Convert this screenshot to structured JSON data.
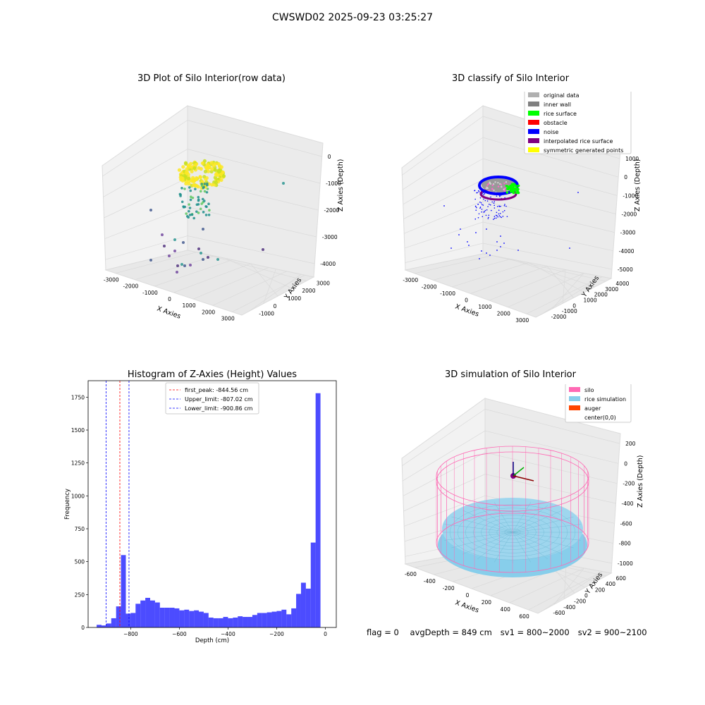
{
  "figure": {
    "suptitle": "CWSWD02 2025-09-23 03:25:27",
    "footer": {
      "flag": "flag = 0",
      "avg_depth": "avgDepth = 849 cm",
      "sv1": "sv1 = 800~2000",
      "sv2": "sv2 = 900~2100"
    }
  },
  "chart_data": [
    {
      "type": "scatter",
      "title": "3D Plot of Silo Interior(row data)",
      "xlabel": "X Axies",
      "ylabel": "Y Axies",
      "zlabel": "Z Axies (Depth)",
      "x_ticks": [
        "-3000",
        "-2000",
        "-1000",
        "0",
        "1000",
        "2000",
        "3000"
      ],
      "y_ticks": [
        "-1000",
        "0",
        "1000",
        "2000",
        "3000"
      ],
      "z_ticks": [
        "0",
        "-1000",
        "-2000",
        "-3000",
        "-4000"
      ],
      "colormap": [
        "#440154",
        "#21918c",
        "#fde725"
      ]
    },
    {
      "type": "scatter",
      "title": "3D classify of Silo Interior",
      "xlabel": "X Axies",
      "ylabel": "Y Axies",
      "zlabel": "Z Axies (Depth)",
      "x_ticks": [
        "-3000",
        "-2000",
        "-1000",
        "0",
        "1000",
        "2000",
        "3000"
      ],
      "y_ticks": [
        "-2000",
        "-1000",
        "0",
        "1000",
        "2000",
        "3000",
        "4000"
      ],
      "z_ticks": [
        "1000",
        "0",
        "-1000",
        "-2000",
        "-3000",
        "-4000",
        "-5000"
      ],
      "legend_position": "top-right",
      "legend": [
        {
          "label": "original data",
          "color": "#b0b0b0"
        },
        {
          "label": "inner wall",
          "color": "#808080"
        },
        {
          "label": "rice surface",
          "color": "#00ff00"
        },
        {
          "label": "obstacle",
          "color": "#ff0000"
        },
        {
          "label": "noise",
          "color": "#0000ff"
        },
        {
          "label": "interpolated rice surface",
          "color": "#800080"
        },
        {
          "label": "symmetric generated points",
          "color": "#ffff00"
        }
      ]
    },
    {
      "type": "bar",
      "title": "Histogram of Z-Axies (Height) Values",
      "xlabel": "Depth (cm)",
      "ylabel": "Frequency",
      "xlim": [
        -975,
        45
      ],
      "ylim": [
        0,
        1875
      ],
      "x_ticks": [
        -800,
        -600,
        -400,
        -200,
        0
      ],
      "y_ticks": [
        0,
        250,
        500,
        750,
        1000,
        1250,
        1500,
        1750
      ],
      "bar_color": "#0000ff",
      "bin_width": 20,
      "bin_starts": [
        -940,
        -920,
        -900,
        -880,
        -860,
        -840,
        -820,
        -800,
        -780,
        -760,
        -740,
        -720,
        -700,
        -680,
        -660,
        -640,
        -620,
        -600,
        -580,
        -560,
        -540,
        -520,
        -500,
        -480,
        -460,
        -440,
        -420,
        -400,
        -380,
        -360,
        -340,
        -320,
        -300,
        -280,
        -260,
        -240,
        -220,
        -200,
        -180,
        -160,
        -140,
        -120,
        -100,
        -80,
        -60,
        -40,
        -20
      ],
      "values": [
        20,
        15,
        30,
        70,
        160,
        550,
        105,
        110,
        180,
        205,
        225,
        205,
        190,
        150,
        150,
        150,
        145,
        130,
        135,
        125,
        130,
        120,
        110,
        75,
        70,
        70,
        80,
        70,
        75,
        85,
        80,
        80,
        95,
        110,
        110,
        115,
        120,
        125,
        135,
        100,
        145,
        255,
        340,
        295,
        645,
        1780,
        0
      ],
      "reference_lines": [
        {
          "label": "first_peak: -844.56 cm",
          "value": -844.56,
          "color": "#ff0000"
        },
        {
          "label": "Upper_limit: -807.02 cm",
          "value": -807.02,
          "color": "#0000ff"
        },
        {
          "label": "Lower_limit: -900.86 cm",
          "value": -900.86,
          "color": "#0000ff"
        }
      ],
      "legend_position": "top-center"
    },
    {
      "type": "surface",
      "title": "3D simulation of Silo Interior",
      "xlabel": "X Axies",
      "ylabel": "Y Axies",
      "zlabel": "Z Axies (Depth)",
      "x_ticks": [
        "-600",
        "-400",
        "-200",
        "0",
        "200",
        "400",
        "600"
      ],
      "y_ticks": [
        "-600",
        "-400",
        "-200",
        "0",
        "200",
        "400",
        "600"
      ],
      "z_ticks": [
        "200",
        "0",
        "-200",
        "-400",
        "-600",
        "-800",
        "-1000"
      ],
      "legend_position": "top-right",
      "legend": [
        {
          "label": "silo",
          "color": "#ff69b4"
        },
        {
          "label": "rice simulation",
          "color": "#87ceeb"
        },
        {
          "label": "auger",
          "color": "#ff4500"
        },
        {
          "label": "center(0,0)",
          "color": "#ffffff"
        }
      ]
    }
  ]
}
